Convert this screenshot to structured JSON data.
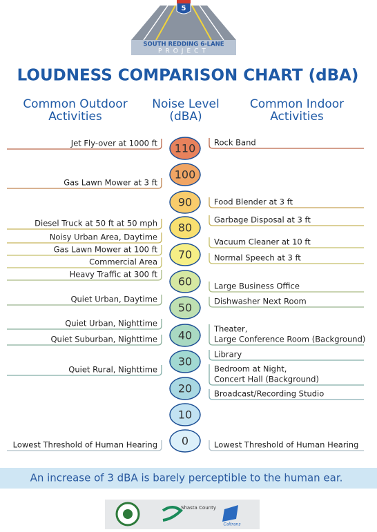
{
  "header": {
    "shield": "5",
    "logo_line1": "SOUTH REDDING 6-LANE",
    "logo_line2": "PROJECT"
  },
  "title": "LOUDNESS COMPARISON CHART (dBA)",
  "columns": [
    {
      "lines": [
        "Common Outdoor",
        "Activities"
      ]
    },
    {
      "lines": [
        "Noise Level",
        "(dBA)"
      ]
    },
    {
      "lines": [
        "Common Indoor",
        "Activities"
      ]
    }
  ],
  "levels": [
    {
      "value": 110,
      "color": "#e8825c"
    },
    {
      "value": 100,
      "color": "#f0a564"
    },
    {
      "value": 90,
      "color": "#f8cc6c"
    },
    {
      "value": 80,
      "color": "#f8e070"
    },
    {
      "value": 70,
      "color": "#f6ef86"
    },
    {
      "value": 60,
      "color": "#d6e8a2"
    },
    {
      "value": 50,
      "color": "#bfe0b2"
    },
    {
      "value": 40,
      "color": "#a9d9c2"
    },
    {
      "value": 30,
      "color": "#a2d9d2"
    },
    {
      "value": 20,
      "color": "#a9d8e2"
    },
    {
      "value": 10,
      "color": "#c2e2f2"
    },
    {
      "value": 0,
      "color": "#dcf0fa"
    }
  ],
  "outdoor": [
    {
      "lines": [
        "Jet Fly-over at 1000 ft"
      ]
    },
    {
      "lines": [
        "Gas Lawn Mower at 3 ft"
      ]
    },
    {
      "lines": [
        "Diesel Truck at 50 ft at 50 mph"
      ]
    },
    {
      "lines": [
        "Noisy Urban Area, Daytime"
      ]
    },
    {
      "lines": [
        "Gas Lawn Mower at 100 ft"
      ]
    },
    {
      "lines": [
        "Commercial Area"
      ]
    },
    {
      "lines": [
        "Heavy Traffic at 300 ft"
      ]
    },
    {
      "lines": [
        "Quiet Urban, Daytime"
      ]
    },
    {
      "lines": [
        "Quiet Urban, Nighttime"
      ]
    },
    {
      "lines": [
        "Quiet Suburban, Nighttime"
      ]
    },
    {
      "lines": [
        "Quiet Rural, Nighttime"
      ]
    },
    {
      "lines": [
        "Lowest Threshold of Human Hearing"
      ]
    }
  ],
  "indoor": [
    {
      "lines": [
        "Rock Band"
      ]
    },
    {
      "lines": [
        "Food Blender at 3 ft"
      ]
    },
    {
      "lines": [
        "Garbage Disposal at 3 ft"
      ]
    },
    {
      "lines": [
        "Vacuum Cleaner at 10 ft"
      ]
    },
    {
      "lines": [
        "Normal Speech at 3 ft"
      ]
    },
    {
      "lines": [
        "Large Business Office"
      ]
    },
    {
      "lines": [
        "Dishwasher Next Room"
      ]
    },
    {
      "lines": [
        "Theater,",
        "Large Conference Room (Background)"
      ]
    },
    {
      "lines": [
        "Library"
      ]
    },
    {
      "lines": [
        "Bedroom at Night,",
        "Concert Hall (Background)"
      ]
    },
    {
      "lines": [
        "Broadcast/Recording Studio"
      ]
    },
    {
      "lines": [
        "Lowest Threshold of Human Hearing"
      ]
    }
  ],
  "note": "An increase of 3 dBA is barely perceptible to the human ear.",
  "logos": {
    "county": "Shasta County",
    "caltrans": "Caltrans"
  }
}
